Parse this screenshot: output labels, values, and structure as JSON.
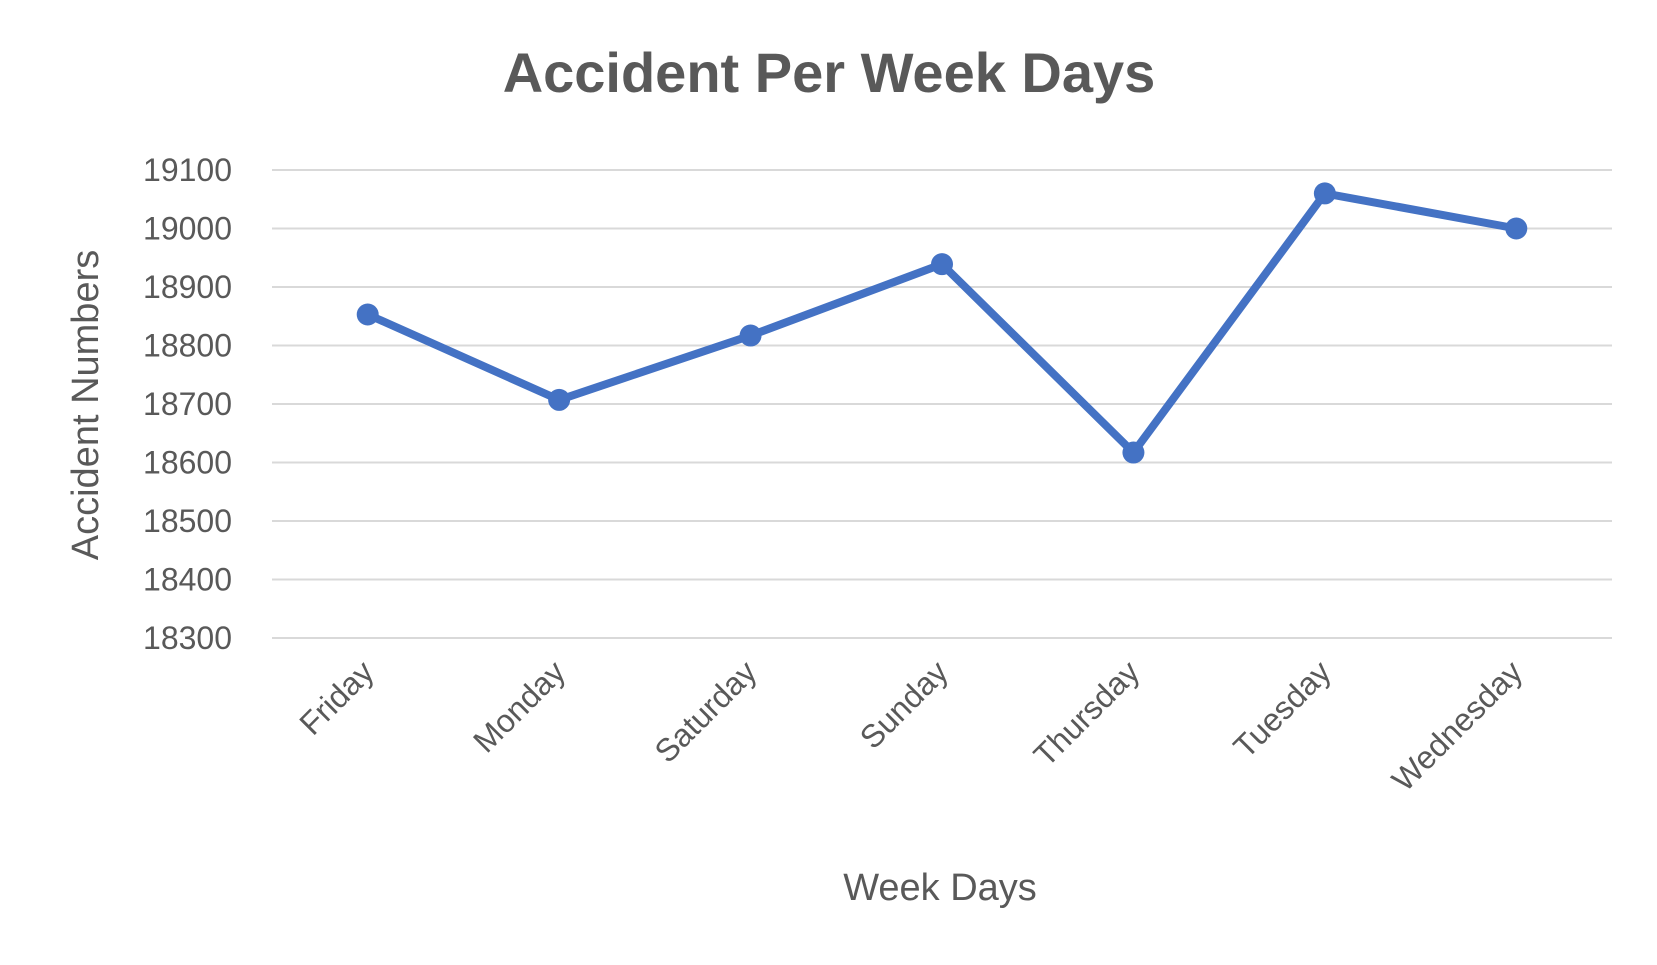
{
  "chart_data": {
    "type": "line",
    "title": "Accident Per Week Days",
    "xlabel": "Week Days",
    "ylabel": "Accident Numbers",
    "categories": [
      "Friday",
      "Monday",
      "Saturday",
      "Sunday",
      "Thursday",
      "Tuesday",
      "Wednesday"
    ],
    "series": [
      {
        "values": [
          18853,
          18707,
          18817,
          18939,
          18617,
          19060,
          19000
        ]
      }
    ],
    "ylim": [
      18300,
      19100
    ],
    "yticks": [
      18300,
      18400,
      18500,
      18600,
      18700,
      18800,
      18900,
      19000,
      19100
    ],
    "grid": true,
    "legend": "none",
    "colors": {
      "series": "#4472c4",
      "grid": "#d9d9d9",
      "text": "#595959"
    }
  }
}
